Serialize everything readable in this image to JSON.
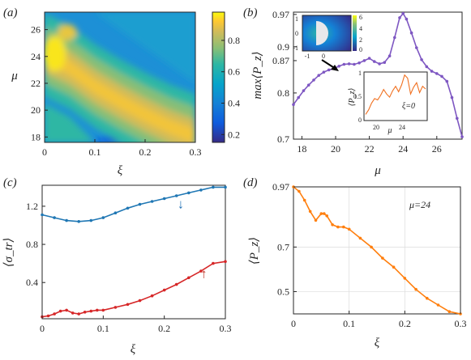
{
  "figure": {
    "panels": [
      {
        "id": "a",
        "label": "(a)"
      },
      {
        "id": "b",
        "label": "(b)"
      },
      {
        "id": "c",
        "label": "(c)"
      },
      {
        "id": "d",
        "label": "(d)"
      }
    ]
  },
  "colors": {
    "purple": "#7e57c2",
    "blue": "#1f77b4",
    "red": "#d62728",
    "orange": "#ff7f0e",
    "inset_orange": "#f07020",
    "annotation_blue": "#1f6fb4",
    "annotation_red": "#c0392b"
  },
  "chart_data": [
    {
      "panel": "a",
      "type": "heatmap",
      "xlabel": "ξ",
      "ylabel": "μ",
      "xlim": [
        0,
        0.3
      ],
      "ylim": [
        17.6,
        27.3
      ],
      "xticks": [
        "0",
        "0.1",
        "0.2",
        "0.3"
      ],
      "yticks": [
        "18",
        "20",
        "22",
        "24",
        "26"
      ],
      "colorbar": {
        "range": [
          0.15,
          0.98
        ],
        "ticks": [
          "0.2",
          "0.4",
          "0.6",
          "0.8"
        ],
        "colormap": "parula"
      },
      "ridge": {
        "xi": [
          0,
          0.05,
          0.1,
          0.15,
          0.2,
          0.25,
          0.3
        ],
        "mu": [
          24.0,
          23.1,
          21.7,
          20.6,
          19.6,
          18.7,
          18.0
        ]
      }
    },
    {
      "panel": "b",
      "type": "line",
      "xlabel": "μ",
      "ylabel": "max⟨P_z⟩",
      "xlim": [
        17.5,
        27.5
      ],
      "ylim": [
        0.7,
        0.975
      ],
      "xticks": [
        "18",
        "20",
        "22",
        "24",
        "26"
      ],
      "yticks": [
        "0.7",
        "0.8",
        "0.87",
        "0.9",
        "0.97"
      ],
      "series": [
        {
          "color": "purple",
          "x": [
            17.5,
            17.8,
            18.1,
            18.4,
            18.7,
            19.0,
            19.3,
            19.6,
            19.9,
            20.2,
            20.5,
            20.8,
            21.1,
            21.4,
            21.7,
            22.0,
            22.3,
            22.6,
            22.9,
            23.2,
            23.5,
            23.8,
            24.0,
            24.2,
            24.5,
            24.8,
            25.1,
            25.4,
            25.7,
            26.0,
            26.3,
            26.6,
            26.9,
            27.2,
            27.5
          ],
          "y": [
            0.775,
            0.79,
            0.805,
            0.817,
            0.828,
            0.838,
            0.845,
            0.85,
            0.853,
            0.858,
            0.862,
            0.863,
            0.862,
            0.865,
            0.87,
            0.875,
            0.868,
            0.863,
            0.866,
            0.88,
            0.92,
            0.963,
            0.972,
            0.96,
            0.93,
            0.898,
            0.872,
            0.857,
            0.847,
            0.842,
            0.836,
            0.825,
            0.79,
            0.745,
            0.705
          ]
        }
      ],
      "inset_map": {
        "colorbar_ticks": [
          "6",
          "4",
          "2",
          "0"
        ],
        "x_ticks": [
          "-1",
          "0"
        ],
        "y_ticks": [
          "1",
          "0",
          "-1"
        ]
      },
      "inset_line": {
        "ylabel": "⟨P_z⟩",
        "xlabel": "μ",
        "annotation": "ξ=0",
        "xticks": [
          "20",
          "24"
        ],
        "yticks": [
          "1",
          "0.5",
          "0"
        ],
        "xlim": [
          17.5,
          27.5
        ],
        "ylim": [
          0,
          1
        ],
        "x": [
          17.5,
          18.0,
          18.5,
          19.0,
          19.5,
          20.0,
          20.5,
          21.0,
          21.5,
          22.0,
          22.5,
          23.0,
          23.5,
          24.0,
          24.5,
          25.0,
          25.5,
          26.0,
          26.5,
          27.0,
          27.5
        ],
        "y": [
          0.1,
          0.2,
          0.35,
          0.45,
          0.42,
          0.52,
          0.65,
          0.55,
          0.48,
          0.62,
          0.72,
          0.6,
          0.75,
          0.97,
          0.9,
          0.55,
          0.7,
          0.8,
          0.58,
          0.72,
          0.66
        ]
      }
    },
    {
      "panel": "c",
      "type": "line",
      "xlabel": "ξ",
      "ylabel": "⟨σ_tr⟩",
      "xlim": [
        0,
        0.3
      ],
      "ylim": [
        0.02,
        1.42
      ],
      "xticks": [
        "0",
        "0.1",
        "0.2",
        "0.3"
      ],
      "yticks": [
        "0.4",
        "0.8",
        "1.2"
      ],
      "annotations": [
        {
          "text": "↓",
          "color": "annotation_blue",
          "x": 0.227,
          "y": 1.18
        },
        {
          "text": "↑",
          "color": "annotation_red",
          "x": 0.265,
          "y": 0.45
        }
      ],
      "series": [
        {
          "color": "blue",
          "x": [
            0,
            0.02,
            0.04,
            0.06,
            0.08,
            0.1,
            0.12,
            0.14,
            0.16,
            0.18,
            0.2,
            0.22,
            0.24,
            0.26,
            0.28,
            0.3
          ],
          "y": [
            1.11,
            1.08,
            1.05,
            1.04,
            1.05,
            1.08,
            1.13,
            1.18,
            1.22,
            1.25,
            1.28,
            1.31,
            1.34,
            1.37,
            1.4,
            1.4
          ]
        },
        {
          "color": "red",
          "x": [
            0,
            0.01,
            0.02,
            0.03,
            0.04,
            0.05,
            0.06,
            0.07,
            0.08,
            0.09,
            0.1,
            0.12,
            0.14,
            0.16,
            0.18,
            0.2,
            0.22,
            0.24,
            0.26,
            0.28,
            0.3
          ],
          "y": [
            0.04,
            0.05,
            0.07,
            0.1,
            0.11,
            0.08,
            0.07,
            0.09,
            0.1,
            0.11,
            0.11,
            0.14,
            0.17,
            0.21,
            0.26,
            0.32,
            0.38,
            0.45,
            0.52,
            0.6,
            0.62
          ]
        }
      ]
    },
    {
      "panel": "d",
      "type": "line",
      "xlabel": "ξ",
      "ylabel": "⟨P_z⟩",
      "xlim": [
        0,
        0.3
      ],
      "ylim": [
        0.4,
        0.97
      ],
      "xticks": [
        "0",
        "0.1",
        "0.2",
        "0.3"
      ],
      "yticks": [
        "0.5",
        "0.7",
        "0.97"
      ],
      "grid": true,
      "annotation": "μ=24",
      "series": [
        {
          "color": "orange",
          "x": [
            0,
            0.01,
            0.02,
            0.03,
            0.04,
            0.05,
            0.055,
            0.06,
            0.07,
            0.08,
            0.09,
            0.1,
            0.12,
            0.14,
            0.16,
            0.18,
            0.2,
            0.22,
            0.24,
            0.26,
            0.28,
            0.3
          ],
          "y": [
            0.97,
            0.95,
            0.91,
            0.86,
            0.82,
            0.85,
            0.85,
            0.84,
            0.8,
            0.79,
            0.79,
            0.78,
            0.74,
            0.7,
            0.65,
            0.61,
            0.56,
            0.51,
            0.47,
            0.44,
            0.41,
            0.4
          ]
        }
      ]
    }
  ]
}
